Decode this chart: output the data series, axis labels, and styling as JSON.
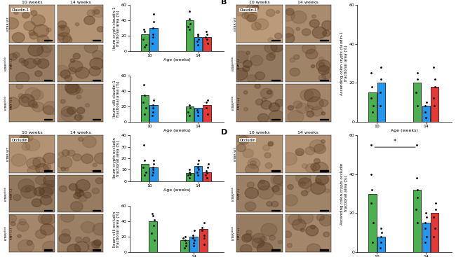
{
  "fig_width": 6.5,
  "fig_height": 3.67,
  "dpi": 100,
  "background_color": "#ffffff",
  "colors": {
    "green": "#4CAF50",
    "blue": "#2196F3",
    "red": "#E53935"
  },
  "panel_A": {
    "stain_label": "Claudin-1",
    "chart1": {
      "ylabel": "Ileum crypts claudin-1\nfractional area (%)",
      "ylim": [
        0,
        60
      ],
      "yticks": [
        0,
        20,
        40,
        60
      ],
      "bar_10_green": 22,
      "bar_10_blue": 30,
      "bar_14_green": 40,
      "bar_14_blue": 18,
      "bar_14_red": 18,
      "dots10_green": [
        5,
        8,
        15,
        25,
        28
      ],
      "dots10_blue": [
        10,
        18,
        22,
        30,
        38,
        48
      ],
      "dots14_green": [
        28,
        32,
        35,
        42,
        52
      ],
      "dots14_blue": [
        8,
        12,
        15,
        20,
        22
      ],
      "dots14_red": [
        10,
        15,
        18,
        22,
        25
      ]
    },
    "chart2": {
      "ylabel": "Ileum villi claudin-1\nfractional area (%)",
      "ylim": [
        0,
        60
      ],
      "yticks": [
        0,
        20,
        40,
        60
      ],
      "bar_10_green": 35,
      "bar_10_blue": 22,
      "bar_14_green": 20,
      "bar_14_blue": 18,
      "bar_14_red": 22,
      "dots10_green": [
        10,
        18,
        25,
        35,
        48
      ],
      "dots10_blue": [
        8,
        12,
        18,
        22,
        28
      ],
      "dots14_green": [
        8,
        12,
        18,
        22
      ],
      "dots14_blue": [
        8,
        12,
        15
      ],
      "dots14_red": [
        10,
        18,
        25,
        28
      ]
    }
  },
  "panel_B": {
    "stain_label": "Claudin-1",
    "chart1": {
      "ylabel": "Ascending colon crypts claudin-1\nfractional area (%)",
      "ylim": [
        0,
        60
      ],
      "yticks": [
        0,
        20,
        40,
        60
      ],
      "bar_10_green": 15,
      "bar_10_blue": 20,
      "bar_14_green": 20,
      "bar_14_blue": 8,
      "bar_14_red": 18,
      "dots10_green": [
        5,
        8,
        12,
        18,
        25
      ],
      "dots10_blue": [
        8,
        15,
        22,
        28
      ],
      "dots14_green": [
        8,
        15,
        22,
        25
      ],
      "dots14_blue": [
        2,
        5,
        8,
        10
      ],
      "dots14_red": [
        8,
        12,
        18,
        22,
        28
      ]
    }
  },
  "panel_C": {
    "stain_label": "Occludin",
    "chart1": {
      "ylabel": "Ileum crypts occludin\nfractional area (%)",
      "ylim": [
        0,
        40
      ],
      "yticks": [
        0,
        10,
        20,
        30,
        40
      ],
      "bar_10_green": 15,
      "bar_10_blue": 12,
      "bar_14_green": 7,
      "bar_14_blue": 13,
      "bar_14_red": 8,
      "dots10_green": [
        5,
        8,
        12,
        18,
        32
      ],
      "dots10_blue": [
        5,
        8,
        10,
        12,
        15,
        18
      ],
      "dots14_green": [
        3,
        5,
        6,
        8,
        10
      ],
      "dots14_blue": [
        5,
        8,
        10,
        12,
        15,
        18
      ],
      "dots14_red": [
        3,
        5,
        7,
        9,
        12,
        15
      ]
    },
    "chart2": {
      "ylabel": "Ileum villi occludin\nfractional area (%)",
      "ylim": [
        0,
        60
      ],
      "yticks": [
        0,
        20,
        40,
        60
      ],
      "bar_10_green": 40,
      "bar_10_blue": null,
      "bar_14_green": 15,
      "bar_14_blue": 20,
      "bar_14_red": 30,
      "dots10_green": [
        15,
        25,
        35,
        42,
        48,
        50
      ],
      "dots10_blue": [],
      "dots14_green": [
        5,
        8,
        12,
        15,
        18,
        20
      ],
      "dots14_blue": [
        8,
        12,
        15,
        18,
        22,
        28
      ],
      "dots14_red": [
        10,
        18,
        22,
        28,
        32,
        38
      ],
      "only_14": true
    }
  },
  "panel_D": {
    "stain_label": "Occludin",
    "chart1": {
      "ylabel": "Ascending colon crypts occludin\nfractional area (%)",
      "ylim": [
        0,
        60
      ],
      "yticks": [
        0,
        20,
        40,
        60
      ],
      "bar_10_green": 30,
      "bar_10_blue": 8,
      "bar_14_green": 32,
      "bar_14_blue": 15,
      "bar_14_red": 20,
      "dots10_green": [
        5,
        15,
        25,
        32,
        40,
        55
      ],
      "dots10_blue": [
        2,
        5,
        8,
        10,
        12
      ],
      "dots14_green": [
        15,
        22,
        28,
        32,
        38,
        55
      ],
      "dots14_blue": [
        5,
        8,
        12,
        15,
        18,
        20
      ],
      "dots14_red": [
        8,
        12,
        18,
        22,
        25
      ],
      "sig_bracket": true
    }
  }
}
